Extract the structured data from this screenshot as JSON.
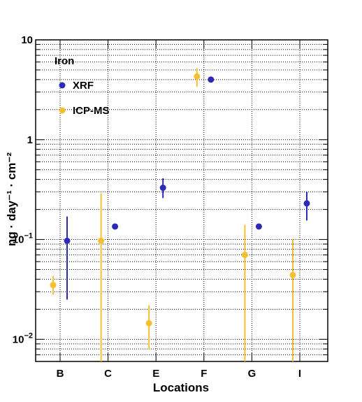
{
  "chart_data": {
    "type": "scatter",
    "y_scale": "log",
    "ylim": [
      0.006,
      10
    ],
    "grid": true,
    "categories": [
      "B",
      "C",
      "E",
      "F",
      "G",
      "I"
    ],
    "xlabel": "Locations",
    "ylabel": "ng · day⁻¹ · cm⁻²",
    "y_tick_labels": [
      {
        "value": 0.01,
        "base": "10",
        "exp": "−2"
      },
      {
        "value": 0.1,
        "base": "10",
        "exp": "−1"
      },
      {
        "value": 1,
        "text": "1"
      },
      {
        "value": 10,
        "text": "10"
      }
    ],
    "legend": {
      "title": "Iron",
      "position": "top-left"
    },
    "series": [
      {
        "name": "XRF",
        "color": "#2b2bb5",
        "offset": "right",
        "points": [
          {
            "category": "B",
            "y": 0.097,
            "low": 0.025,
            "high": 0.17
          },
          {
            "category": "C",
            "y": 0.135
          },
          {
            "category": "E",
            "y": 0.33,
            "low": 0.26,
            "high": 0.41
          },
          {
            "category": "F",
            "y": 4.0
          },
          {
            "category": "G",
            "y": 0.135
          },
          {
            "category": "I",
            "y": 0.23,
            "low": 0.155,
            "high": 0.3
          }
        ]
      },
      {
        "name": "ICP-MS",
        "color": "#f5c030",
        "offset": "left",
        "points": [
          {
            "category": "B",
            "y": 0.035,
            "low": 0.028,
            "high": 0.043
          },
          {
            "category": "C",
            "y": 0.097,
            "low": 0.006,
            "high": 0.29
          },
          {
            "category": "E",
            "y": 0.0145,
            "low": 0.008,
            "high": 0.022
          },
          {
            "category": "F",
            "y": 4.3,
            "low": 3.4,
            "high": 5.2
          },
          {
            "category": "G",
            "y": 0.07,
            "low": 0.006,
            "high": 0.14
          },
          {
            "category": "I",
            "y": 0.044,
            "low": 0.006,
            "high": 0.1
          }
        ]
      }
    ]
  }
}
